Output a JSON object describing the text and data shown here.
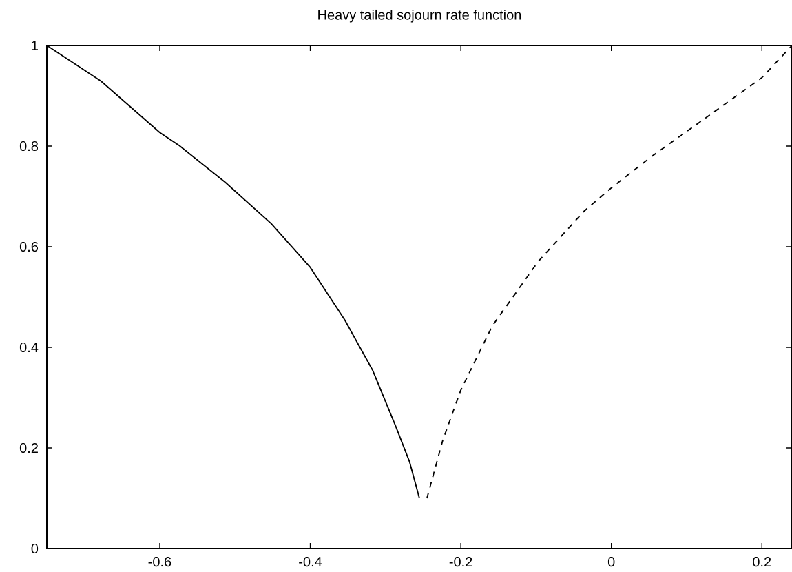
{
  "chart_data": {
    "type": "line",
    "title": "Heavy tailed sojourn rate function",
    "xlim": [
      -0.75,
      0.24
    ],
    "ylim": [
      0,
      1
    ],
    "xticks": [
      -0.6,
      -0.4,
      -0.2,
      0,
      0.2
    ],
    "yticks": [
      0,
      0.2,
      0.4,
      0.6,
      0.8,
      1
    ],
    "grid": false,
    "marker": "none",
    "series": [
      {
        "color": "#000000",
        "line_style": "solid",
        "x": [
          -0.75,
          -0.678,
          -0.6,
          -0.574,
          -0.513,
          -0.452,
          -0.4,
          -0.354,
          -0.317,
          -0.287,
          -0.268,
          -0.255
        ],
        "values": [
          1.0,
          0.929,
          0.827,
          0.801,
          0.728,
          0.646,
          0.559,
          0.454,
          0.354,
          0.245,
          0.172,
          0.1
        ]
      },
      {
        "color": "#000000",
        "line_style": "dashed",
        "x": [
          -0.245,
          -0.224,
          -0.2,
          -0.158,
          -0.097,
          -0.036,
          0,
          0.055,
          0.115,
          0.2,
          0.24
        ],
        "values": [
          0.1,
          0.215,
          0.315,
          0.443,
          0.571,
          0.671,
          0.717,
          0.781,
          0.845,
          0.936,
          1.0
        ]
      }
    ]
  }
}
